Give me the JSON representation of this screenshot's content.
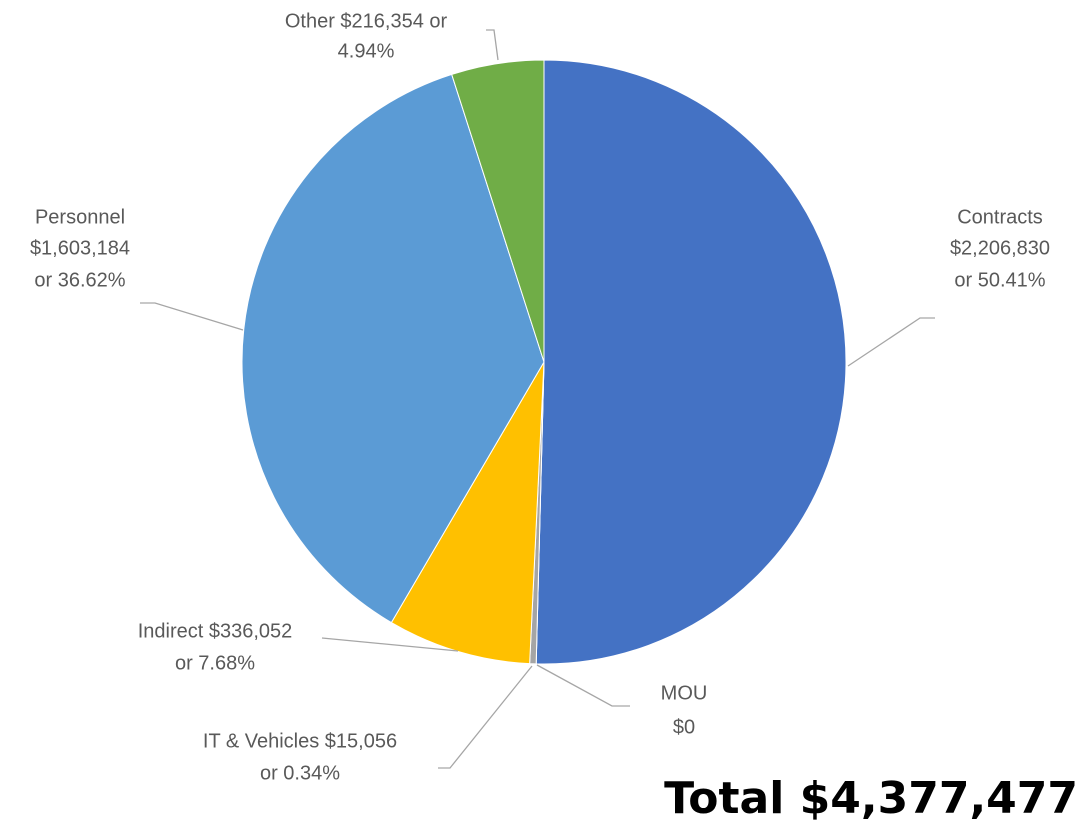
{
  "chart_data": {
    "type": "pie",
    "values": [
      2206830,
      0,
      15056,
      336052,
      1603184,
      216354
    ],
    "value_labels": [
      [
        "Contracts",
        "$2,206,830",
        "or 50.41%"
      ],
      [
        "MOU",
        "$0"
      ],
      [
        "IT & Vehicles $15,056",
        "or 0.34%"
      ],
      [
        "Indirect $336,052",
        "or 7.68%"
      ],
      [
        "Personnel",
        "$1,603,184",
        "or 36.62%"
      ],
      [
        "Other $216,354  or",
        "4.94%"
      ]
    ],
    "colors": [
      "#4472c4",
      "#ed7d31",
      "#a5a5a5",
      "#ffc000",
      "#5b9bd5",
      "#70ad47"
    ],
    "total_label": "Total $4,377,477"
  }
}
